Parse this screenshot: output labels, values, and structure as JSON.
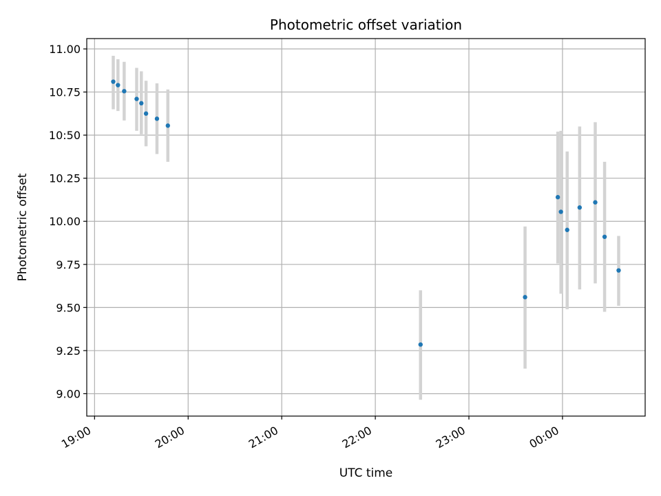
{
  "chart_data": {
    "type": "scatter",
    "title": "Photometric offset variation",
    "xlabel": "UTC time",
    "ylabel": "Photometric offset",
    "grid": true,
    "xlim": [
      "18:55",
      "00:53"
    ],
    "ylim": [
      8.87,
      11.06
    ],
    "xticks": [
      "19:00",
      "20:00",
      "21:00",
      "22:00",
      "23:00",
      "00:00"
    ],
    "yticks": [
      "9.00",
      "9.25",
      "9.50",
      "9.75",
      "10.00",
      "10.25",
      "10:50",
      "10.75",
      "11.00"
    ],
    "colors": {
      "points": "#1f77b4",
      "error_bars": "#d3d3d3",
      "grid": "#b0b0b0"
    },
    "points": [
      {
        "x": "19:12",
        "y": 10.81,
        "yerr": [
          10.65,
          10.96
        ]
      },
      {
        "x": "19:15",
        "y": 10.79,
        "yerr": [
          10.64,
          10.94
        ]
      },
      {
        "x": "19:19",
        "y": 10.755,
        "yerr": [
          10.585,
          10.925
        ]
      },
      {
        "x": "19:27",
        "y": 10.71,
        "yerr": [
          10.525,
          10.89
        ]
      },
      {
        "x": "19:30",
        "y": 10.685,
        "yerr": [
          10.505,
          10.87
        ]
      },
      {
        "x": "19:33",
        "y": 10.625,
        "yerr": [
          10.435,
          10.815
        ]
      },
      {
        "x": "19:40",
        "y": 10.595,
        "yerr": [
          10.39,
          10.8
        ]
      },
      {
        "x": "19:47",
        "y": 10.555,
        "yerr": [
          10.345,
          10.765
        ]
      },
      {
        "x": "22:29",
        "y": 9.285,
        "yerr": [
          8.965,
          9.6
        ]
      },
      {
        "x": "23:36",
        "y": 9.56,
        "yerr": [
          9.145,
          9.97
        ]
      },
      {
        "x": "23:57",
        "y": 10.14,
        "yerr": [
          9.755,
          10.52
        ]
      },
      {
        "x": "23:59",
        "y": 10.055,
        "yerr": [
          9.58,
          10.525
        ]
      },
      {
        "x": "00:03",
        "y": 9.95,
        "yerr": [
          9.49,
          10.405
        ]
      },
      {
        "x": "00:11",
        "y": 10.08,
        "yerr": [
          9.605,
          10.55
        ]
      },
      {
        "x": "00:21",
        "y": 10.11,
        "yerr": [
          9.64,
          10.575
        ]
      },
      {
        "x": "00:27",
        "y": 9.91,
        "yerr": [
          9.475,
          10.345
        ]
      },
      {
        "x": "00:36",
        "y": 9.715,
        "yerr": [
          9.51,
          9.915
        ]
      }
    ]
  }
}
